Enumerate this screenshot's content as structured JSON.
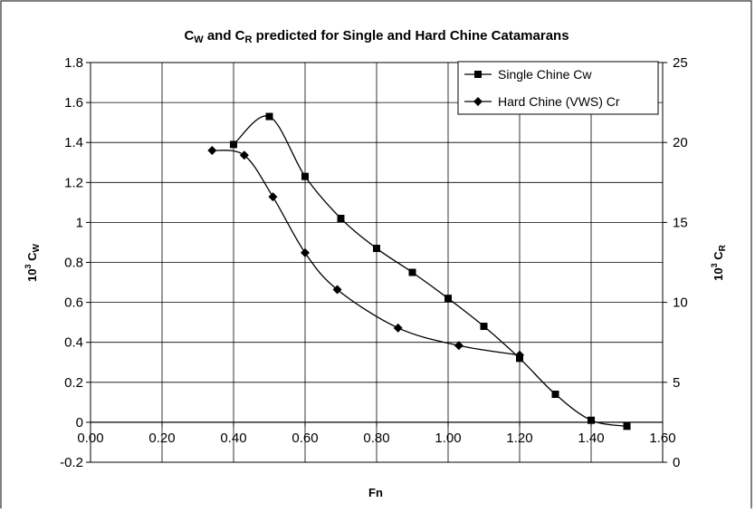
{
  "chart_data": {
    "type": "line",
    "title": {
      "part1": "C",
      "sub1": "W",
      "part2": " and C",
      "sub2": "R",
      "part3": " predicted for Single and Hard Chine Catamarans"
    },
    "xlabel": "Fn",
    "ylabel_left": {
      "base": "10",
      "exp": "3",
      "sym": " C",
      "sub": "W"
    },
    "ylabel_right": {
      "base": "10",
      "exp": "3",
      "sym": " C",
      "sub": "R"
    },
    "x_ticks": [
      "0.00",
      "0.20",
      "0.40",
      "0.60",
      "0.80",
      "1.00",
      "1.20",
      "1.40",
      "1.60"
    ],
    "y_left_ticks": [
      "1.8",
      "1.6",
      "1.4",
      "1.2",
      "1",
      "0.8",
      "0.6",
      "0.4",
      "0.2",
      "0",
      "-0.2"
    ],
    "y_right_ticks": [
      "25",
      "20",
      "15",
      "10",
      "5",
      "0"
    ],
    "xlim": [
      0,
      1.6
    ],
    "ylim_left": [
      -0.2,
      1.8
    ],
    "ylim_right": [
      0,
      25
    ],
    "grid": true,
    "legend_position": "top-right",
    "series": [
      {
        "name": "Single Chine Cw",
        "axis": "left",
        "marker": "square",
        "x": [
          0.4,
          0.5,
          0.6,
          0.7,
          0.8,
          0.9,
          1.0,
          1.1,
          1.2,
          1.3,
          1.4,
          1.5
        ],
        "y": [
          1.39,
          1.53,
          1.23,
          1.02,
          0.87,
          0.75,
          0.62,
          0.48,
          0.32,
          0.14,
          0.01,
          -0.02
        ]
      },
      {
        "name": "Hard Chine (VWS) Cr",
        "axis": "right",
        "marker": "diamond",
        "x": [
          0.34,
          0.43,
          0.51,
          0.6,
          0.69,
          0.86,
          1.03,
          1.2
        ],
        "y": [
          19.5,
          19.2,
          16.6,
          13.1,
          10.8,
          8.4,
          7.3,
          6.7
        ]
      }
    ]
  }
}
